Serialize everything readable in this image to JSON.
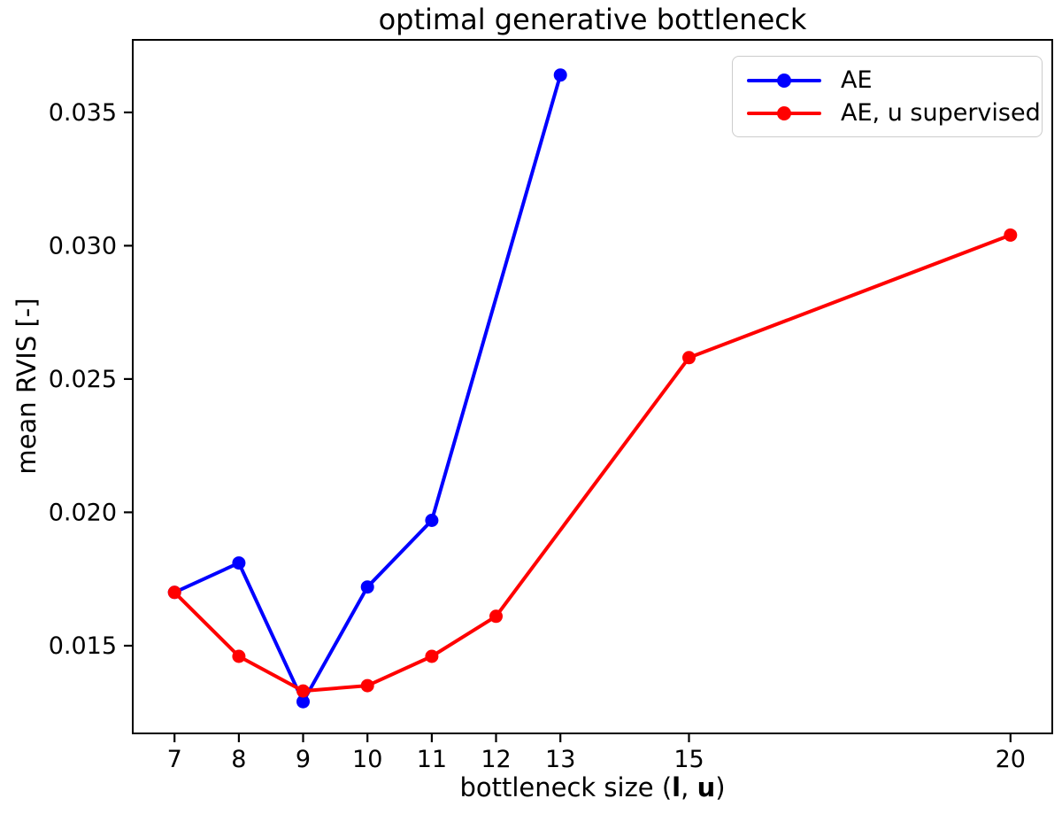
{
  "chart_data": {
    "type": "line",
    "title": "optimal generative bottleneck",
    "ylabel": "mean RVIS [-]",
    "xlabel_plain": "bottleneck size (l, u)",
    "xlabel_parts": [
      {
        "text": "bottleneck size (",
        "bold": false
      },
      {
        "text": "l",
        "bold": true
      },
      {
        "text": ", ",
        "bold": false
      },
      {
        "text": "u",
        "bold": true
      },
      {
        "text": ")",
        "bold": false
      }
    ],
    "xlim": [
      6.35,
      20.65
    ],
    "ylim": [
      0.01171,
      0.03772
    ],
    "xticks": [
      {
        "v": 7,
        "label": "7"
      },
      {
        "v": 8,
        "label": "8"
      },
      {
        "v": 9,
        "label": "9"
      },
      {
        "v": 10,
        "label": "10"
      },
      {
        "v": 11,
        "label": "11"
      },
      {
        "v": 12,
        "label": "12"
      },
      {
        "v": 13,
        "label": "13"
      },
      {
        "v": 15,
        "label": "15"
      },
      {
        "v": 20,
        "label": "20"
      }
    ],
    "yticks": [
      {
        "v": 0.015,
        "label": "0.015"
      },
      {
        "v": 0.02,
        "label": "0.020"
      },
      {
        "v": 0.025,
        "label": "0.025"
      },
      {
        "v": 0.03,
        "label": "0.030"
      },
      {
        "v": 0.035,
        "label": "0.035"
      }
    ],
    "grid": false,
    "legend_position": "upper right",
    "marker": "circle",
    "series": [
      {
        "name": "AE",
        "color": "#0000ff",
        "x": [
          7,
          8,
          9,
          10,
          11,
          13
        ],
        "y": [
          0.017,
          0.0181,
          0.0129,
          0.0172,
          0.0197,
          0.0364
        ]
      },
      {
        "name": "AE, u supervised",
        "color": "#ff0000",
        "x": [
          7,
          8,
          9,
          10,
          11,
          12,
          15,
          20
        ],
        "y": [
          0.017,
          0.0146,
          0.0133,
          0.0135,
          0.0146,
          0.0161,
          0.0258,
          0.0304
        ]
      }
    ]
  }
}
